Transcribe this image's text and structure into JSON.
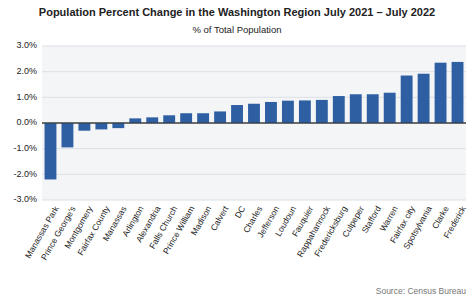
{
  "chart_data": {
    "type": "bar",
    "title": "Population Percent Change in the Washington Region July 2021 – July 2022",
    "subtitle": "% of Total Population",
    "annotations": [
      "Source: Census Bureau"
    ],
    "categories": [
      "Manassas Park",
      "Prince George's",
      "Montgomery",
      "Fairfax County",
      "Manassas",
      "Arlington",
      "Alexandria",
      "Falls Church",
      "Prince William",
      "Madison",
      "Calvert",
      "DC",
      "Charles",
      "Jefferson",
      "Loudoun",
      "Fauquier",
      "Rappahannock",
      "Fredericksburg",
      "Culpeper",
      "Stafford",
      "Warren",
      "Fairfax city",
      "Spotsylvania",
      "Clarke",
      "Frederick"
    ],
    "values": [
      -2.2,
      -0.95,
      -0.3,
      -0.25,
      -0.2,
      0.18,
      0.22,
      0.3,
      0.38,
      0.38,
      0.45,
      0.7,
      0.75,
      0.82,
      0.87,
      0.88,
      0.9,
      1.05,
      1.12,
      1.12,
      1.18,
      1.85,
      1.92,
      2.35,
      2.38
    ],
    "color": "#2E5FA3",
    "ylim": [
      -3.0,
      3.0
    ],
    "yticks": [
      {
        "value": -3.0,
        "label": "-3.0%"
      },
      {
        "value": -2.0,
        "label": "-2.0%"
      },
      {
        "value": -1.0,
        "label": "-1.0%"
      },
      {
        "value": 0.0,
        "label": "0.0%"
      },
      {
        "value": 1.0,
        "label": "1.0%"
      },
      {
        "value": 2.0,
        "label": "2.0%"
      },
      {
        "value": 3.0,
        "label": "3.0%"
      }
    ],
    "grid": true
  }
}
